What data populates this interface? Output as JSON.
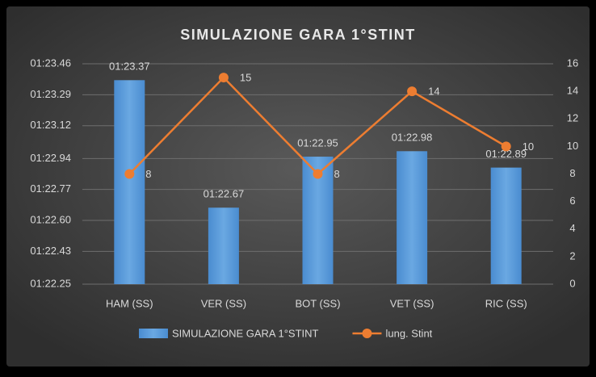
{
  "chart_data": {
    "type": "combo",
    "title": "SIMULAZIONE GARA 1°STINT",
    "categories": [
      "HAM (SS)",
      "VER (SS)",
      "BOT (SS)",
      "VET (SS)",
      "RIC (SS)"
    ],
    "series": [
      {
        "name": "SIMULAZIONE GARA 1°STINT",
        "type": "bar",
        "color": "#5b9bd5",
        "values": [
          83.37,
          82.67,
          82.95,
          82.98,
          82.89
        ],
        "value_labels": [
          "01:23.37",
          "01:22.67",
          "01:22.95",
          "01:22.98",
          "01:22.89"
        ]
      },
      {
        "name": "lung. Stint",
        "type": "line",
        "axis": "y2",
        "color": "#ed7d31",
        "values": [
          8,
          15,
          8,
          14,
          10
        ]
      }
    ],
    "ylim": [
      82.25,
      83.46
    ],
    "yticks": [
      {
        "value": 82.25,
        "label": "01:22.25"
      },
      {
        "value": 82.43,
        "label": "01:22.43"
      },
      {
        "value": 82.6,
        "label": "01:22.60"
      },
      {
        "value": 82.77,
        "label": "01:22.77"
      },
      {
        "value": 82.94,
        "label": "01:22.94"
      },
      {
        "value": 83.12,
        "label": "01:23.12"
      },
      {
        "value": 83.29,
        "label": "01:23.29"
      },
      {
        "value": 83.46,
        "label": "01:23.46"
      }
    ],
    "y2lim": [
      0,
      16
    ],
    "y2ticks": [
      0,
      2,
      4,
      6,
      8,
      10,
      12,
      14,
      16
    ],
    "grid": true,
    "legend": "bottom"
  }
}
